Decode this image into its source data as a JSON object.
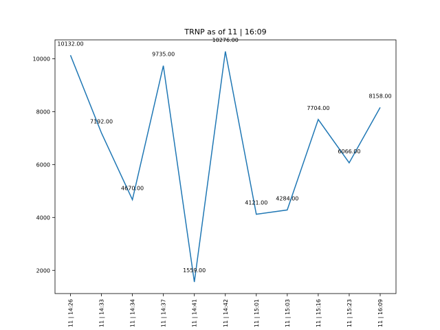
{
  "chart_data": {
    "type": "line",
    "title": "TRNP as of 11 | 16:09",
    "xlabel": "",
    "ylabel": "",
    "categories": [
      "11 | 14:26",
      "11 | 14:33",
      "11 | 14:34",
      "11 | 14:37",
      "11 | 14:41",
      "11 | 14:42",
      "11 | 15:01",
      "11 | 15:03",
      "11 | 15:16",
      "11 | 15:23",
      "11 | 16:09"
    ],
    "values": [
      10132.0,
      7192.0,
      4670.0,
      9735.0,
      1559.0,
      10276.0,
      4121.0,
      4284.0,
      7704.0,
      6066.0,
      8158.0
    ],
    "data_labels": [
      "10132.00",
      "7192.00",
      "4670.00",
      "9735.00",
      "1559.00",
      "10276.00",
      "4121.00",
      "4284.00",
      "7704.00",
      "6066.00",
      "8158.00"
    ],
    "yticks": [
      2000,
      4000,
      6000,
      8000,
      10000
    ],
    "ylim": [
      1123,
      10712
    ],
    "grid": false,
    "legend": "none",
    "line_color": "#1f77b4"
  }
}
